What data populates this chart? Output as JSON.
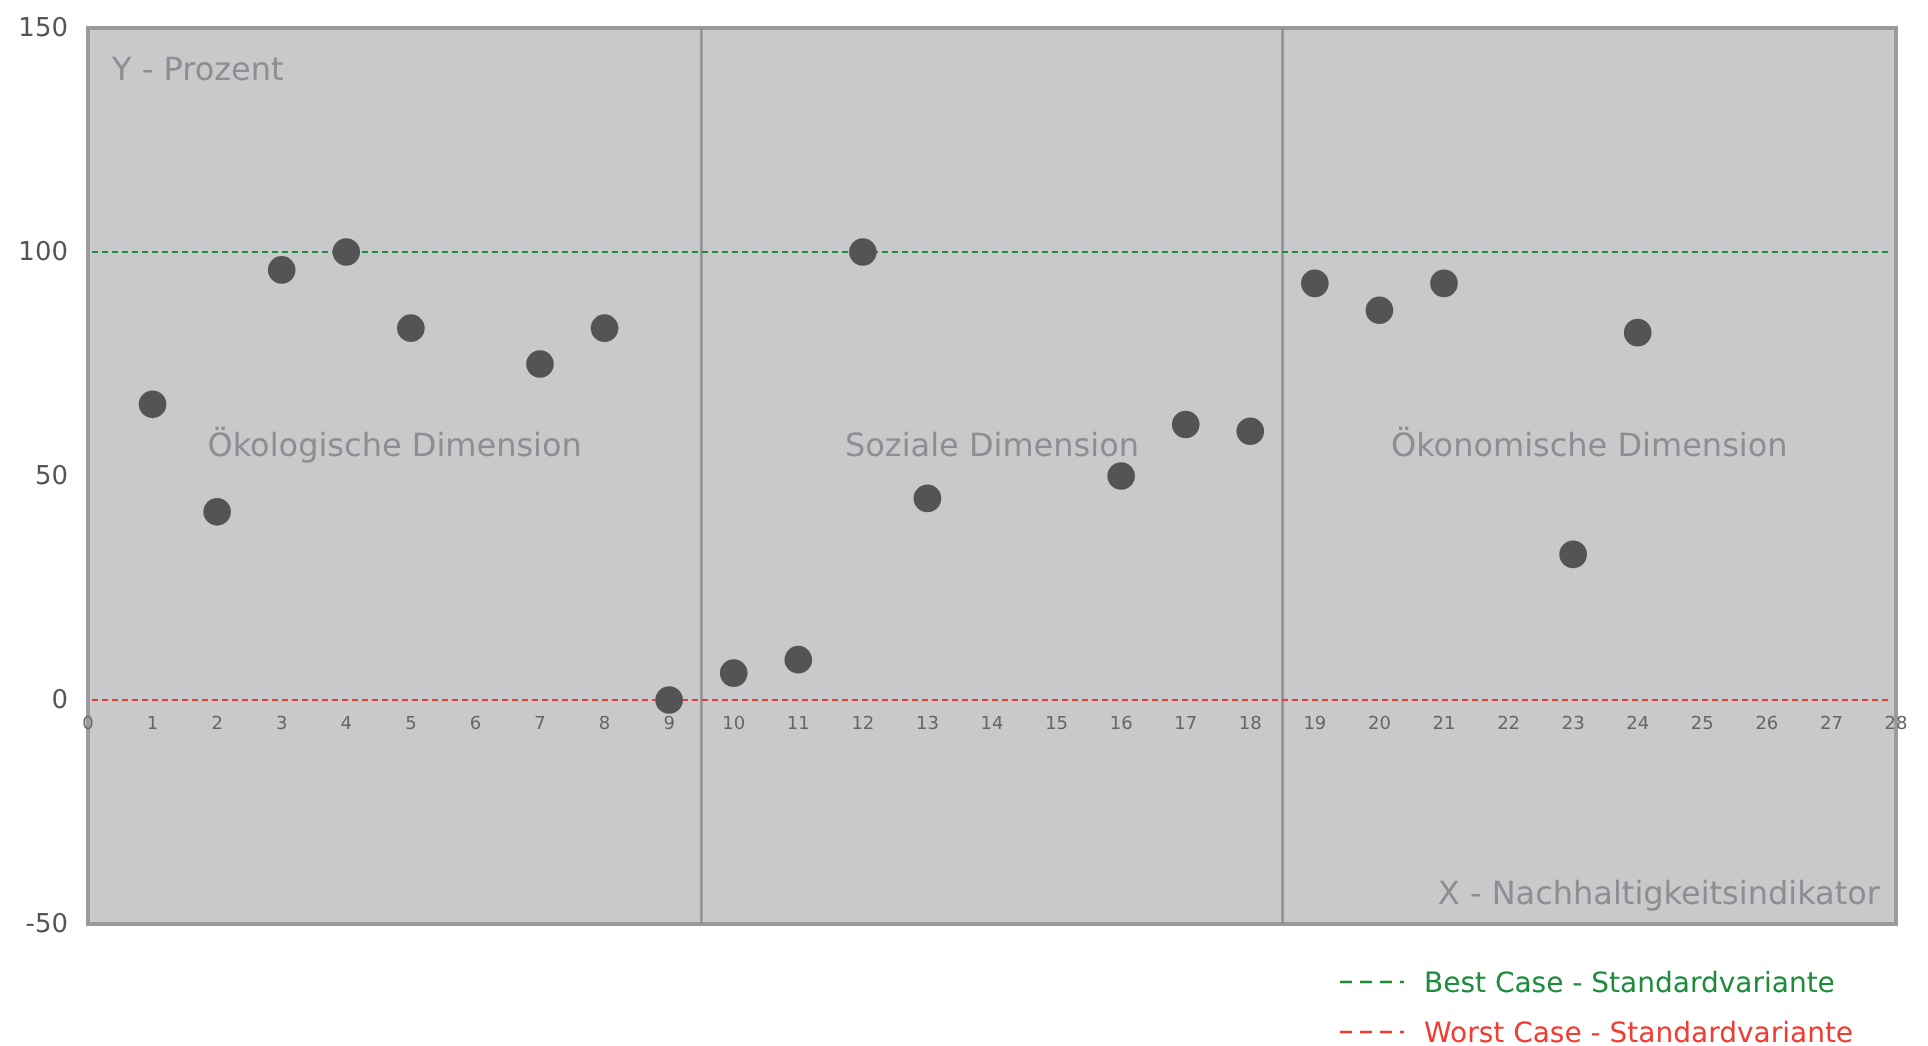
{
  "chart_data": {
    "type": "scatter",
    "xlabel": "X - Nachhaltigkeitsindikator",
    "ylabel": "Y - Prozent",
    "xlim": [
      0,
      28
    ],
    "xticks": [
      0,
      1,
      2,
      3,
      4,
      5,
      6,
      7,
      8,
      9,
      10,
      11,
      12,
      13,
      14,
      15,
      16,
      17,
      18,
      19,
      20,
      21,
      22,
      23,
      24,
      25,
      26,
      27,
      28
    ],
    "ylim": [
      -50,
      150
    ],
    "yticks": [
      -50,
      0,
      50,
      100,
      150
    ],
    "marker": "circle",
    "grid": false,
    "legend": "bottom right",
    "series": [
      {
        "color": "#545457",
        "x": [
          1,
          2,
          3,
          4,
          5,
          7,
          8,
          9,
          10,
          11,
          12,
          13,
          16,
          17,
          18,
          19,
          20,
          21,
          23,
          24
        ],
        "values": [
          66,
          42,
          96,
          100,
          83,
          75,
          83,
          0,
          6,
          9,
          100,
          45,
          50,
          61.5,
          60,
          93,
          87,
          93,
          32.5,
          82
        ]
      }
    ],
    "ref_lines": [
      {
        "axis": "x",
        "value": 9.5,
        "color": "#8c8d91",
        "line_style": "solid"
      },
      {
        "axis": "x",
        "value": 18.5,
        "color": "#8c8d91",
        "line_style": "solid"
      },
      {
        "axis": "y",
        "value": 100,
        "label": "Best Case - Standardvariante",
        "color": "#1e8c3c",
        "line_style": "dashed"
      },
      {
        "axis": "y",
        "value": 0,
        "label": "Worst Case - Standardvariante",
        "color": "#f03c32",
        "line_style": "dashed"
      }
    ],
    "annotations": [
      "Ökologische Dimension",
      "Soziale Dimension",
      "Ökonomische Dimension"
    ]
  }
}
